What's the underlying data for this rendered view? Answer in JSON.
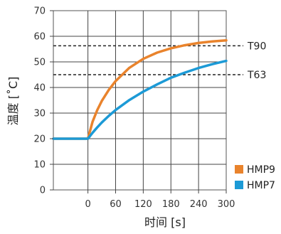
{
  "chart_data": {
    "type": "line",
    "xlabel": "时间 [s]",
    "ylabel": "温度 [˚C]",
    "xlim": [
      -75,
      300
    ],
    "ylim": [
      0,
      70
    ],
    "x_ticks": [
      0,
      60,
      120,
      180,
      240,
      300
    ],
    "y_ticks": [
      0,
      10,
      20,
      30,
      40,
      50,
      60,
      70
    ],
    "grid": "vertical and horizontal",
    "legend_position": "bottom-right",
    "reference_lines": [
      {
        "label": "T90",
        "y": 56.3
      },
      {
        "label": "T63",
        "y": 45.0
      }
    ],
    "series": [
      {
        "name": "HMP9",
        "color": "#e9832c",
        "x": [
          -75,
          0,
          10,
          20,
          30,
          45,
          60,
          90,
          120,
          150,
          180,
          210,
          240,
          270,
          300
        ],
        "y": [
          20,
          20,
          26.6,
          31.1,
          34.7,
          39.0,
          42.5,
          47.7,
          51.2,
          53.6,
          55.3,
          56.5,
          57.4,
          58.0,
          58.4
        ]
      },
      {
        "name": "HMP7",
        "color": "#1c9ad6",
        "x": [
          -75,
          0,
          10,
          20,
          30,
          45,
          60,
          90,
          120,
          150,
          180,
          210,
          240,
          270,
          300
        ],
        "y": [
          20,
          20,
          22.3,
          24.4,
          26.3,
          28.9,
          31.2,
          35.1,
          38.4,
          41.2,
          43.8,
          45.8,
          47.6,
          49.1,
          50.4
        ]
      }
    ]
  }
}
